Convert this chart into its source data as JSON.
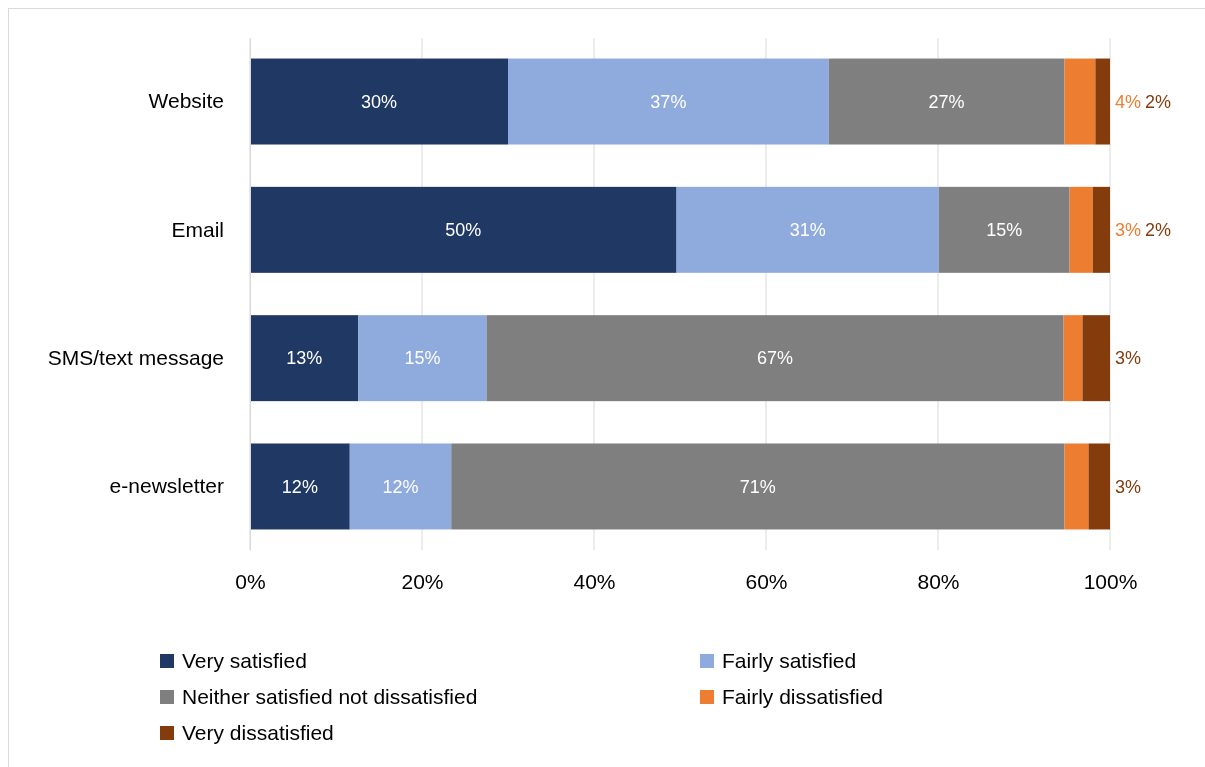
{
  "chart_data": {
    "type": "bar",
    "orientation": "horizontal",
    "stacked": true,
    "categories": [
      "Website",
      "Email",
      "SMS/text message",
      "e-newsletter"
    ],
    "series": [
      {
        "name": "Very satisfied",
        "color": "#203864",
        "values": [
          30,
          49.6,
          12.6,
          11.6
        ],
        "value_labels": [
          "30%",
          "50%",
          "13%",
          "12%"
        ]
      },
      {
        "name": "Fairly satisfied",
        "color": "#8faadc",
        "values": [
          37.3,
          30.5,
          14.9,
          11.8
        ],
        "value_labels": [
          "37%",
          "31%",
          "15%",
          "12%"
        ]
      },
      {
        "name": "Neither satisfied not dissatisfied",
        "color": "#7f7f7f",
        "values": [
          27.4,
          15.2,
          67.1,
          71.3
        ],
        "value_labels": [
          "27%",
          "15%",
          "67%",
          "71%"
        ]
      },
      {
        "name": "Fairly dissatisfied",
        "color": "#ed7d31",
        "values": [
          3.6,
          2.7,
          2.2,
          2.8
        ],
        "value_labels": [
          "4%",
          "3%",
          null,
          null
        ]
      },
      {
        "name": "Very dissatisfied",
        "color": "#843c0c",
        "values": [
          1.7,
          2.0,
          3.2,
          2.5
        ],
        "value_labels": [
          "2%",
          "2%",
          "3%",
          "3%"
        ]
      }
    ],
    "xlim": [
      0,
      100
    ],
    "xticks": [
      {
        "value": 0,
        "label": "0%"
      },
      {
        "value": 20,
        "label": "20%"
      },
      {
        "value": 40,
        "label": "40%"
      },
      {
        "value": 60,
        "label": "60%"
      },
      {
        "value": 80,
        "label": "80%"
      },
      {
        "value": 100,
        "label": "100%"
      }
    ],
    "grid": "x",
    "legend": "bottom"
  }
}
